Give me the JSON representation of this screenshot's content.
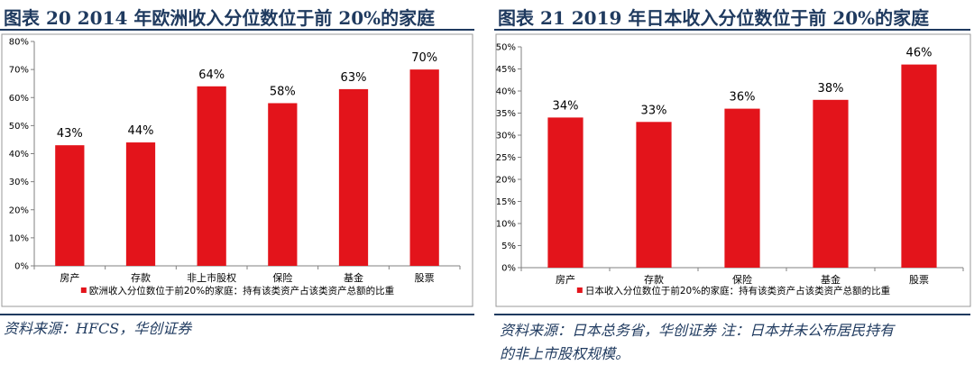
{
  "figure_left": {
    "title": "图表 20   2014 年欧洲收入分位数位于前 20%的家庭",
    "source": "资料来源：HFCS，华创证券"
  },
  "figure_right": {
    "title": "图表 21   2019 年日本收入分位数位于前 20%的家庭",
    "source_line1": "资料来源：日本总务省，华创证券   注：日本并未公布居民持有",
    "source_line2": "的非上市股权规模。"
  },
  "colors": {
    "bar": "#e3141b",
    "title": "#1f3a5f",
    "axis": "#808080"
  },
  "chart_data": [
    {
      "type": "bar",
      "categories": [
        "房产",
        "存款",
        "非上市股权",
        "保险",
        "基金",
        "股票"
      ],
      "values": [
        43,
        44,
        64,
        58,
        63,
        70
      ],
      "data_labels": [
        "43%",
        "44%",
        "64%",
        "58%",
        "63%",
        "70%"
      ],
      "yticks": [
        "0%",
        "10%",
        "20%",
        "30%",
        "40%",
        "50%",
        "60%",
        "70%",
        "80%"
      ],
      "ylim": [
        0,
        80
      ],
      "legend": "欧洲收入分位数位于前20%的家庭：持有该类资产占该类资产总额的比重",
      "legend_position": "bottom"
    },
    {
      "type": "bar",
      "categories": [
        "房产",
        "存款",
        "保险",
        "基金",
        "股票"
      ],
      "values": [
        34,
        33,
        36,
        38,
        46
      ],
      "data_labels": [
        "34%",
        "33%",
        "36%",
        "38%",
        "46%"
      ],
      "yticks": [
        "0%",
        "5%",
        "10%",
        "15%",
        "20%",
        "25%",
        "30%",
        "35%",
        "40%",
        "45%",
        "50%"
      ],
      "ylim": [
        0,
        50
      ],
      "legend": "日本收入分位数位于前20%的家庭：持有该类资产占该类资产总额的比重",
      "legend_position": "bottom"
    }
  ]
}
